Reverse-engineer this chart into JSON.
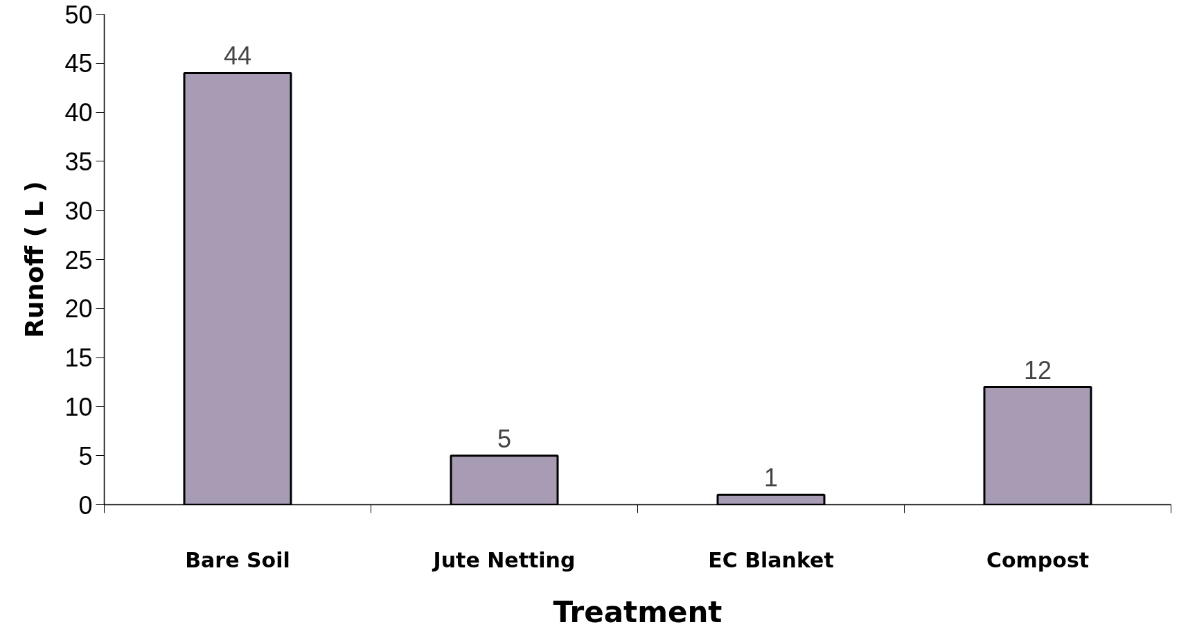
{
  "chart_data": {
    "type": "bar",
    "xlabel": "Treatment",
    "ylabel": "Runoff ( L )",
    "categories": [
      "Bare Soil",
      "Jute Netting",
      "EC Blanket",
      "Compost"
    ],
    "values": [
      44,
      5,
      1,
      12
    ],
    "data_labels": true,
    "color": "#a89cb4",
    "ylim": [
      0,
      50
    ],
    "yticks": [
      0,
      5,
      10,
      15,
      20,
      25,
      30,
      35,
      40,
      45,
      50
    ],
    "grid": false
  }
}
